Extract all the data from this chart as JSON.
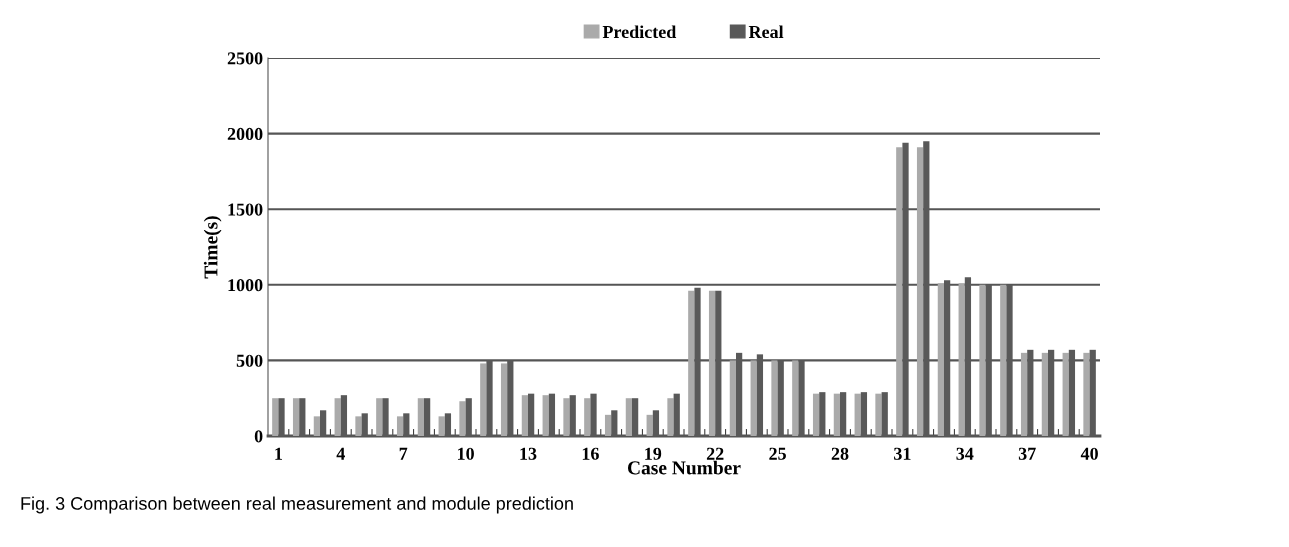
{
  "chart_data": {
    "type": "bar",
    "categories": [
      "1",
      null,
      null,
      "4",
      null,
      null,
      "7",
      null,
      null,
      "10",
      null,
      null,
      "13",
      null,
      null,
      "16",
      null,
      null,
      "19",
      null,
      null,
      "22",
      null,
      null,
      "25",
      null,
      null,
      "28",
      null,
      null,
      "31",
      null,
      null,
      "34",
      null,
      null,
      "37",
      null,
      null,
      "40"
    ],
    "series": [
      {
        "name": "Predicted",
        "color": "#aaaaaa",
        "values": [
          250,
          250,
          130,
          250,
          130,
          250,
          130,
          250,
          130,
          230,
          480,
          480,
          270,
          270,
          250,
          250,
          140,
          250,
          140,
          250,
          960,
          960,
          500,
          500,
          500,
          500,
          280,
          280,
          280,
          280,
          1910,
          1910,
          1010,
          1010,
          1000,
          1000,
          550,
          550,
          550,
          550
        ]
      },
      {
        "name": "Real",
        "color": "#595959",
        "values": [
          250,
          250,
          170,
          270,
          150,
          250,
          150,
          250,
          150,
          250,
          500,
          500,
          280,
          280,
          270,
          280,
          170,
          250,
          170,
          280,
          980,
          960,
          550,
          540,
          500,
          500,
          290,
          290,
          290,
          290,
          1940,
          1950,
          1030,
          1050,
          1000,
          1000,
          570,
          570,
          570,
          570
        ]
      }
    ],
    "xlabel": "Case Number",
    "ylabel": "Time(s)",
    "ylim": [
      0,
      2500
    ],
    "yticks": [
      0,
      500,
      1000,
      1500,
      2000,
      2500
    ],
    "grid": "y",
    "legend": "top",
    "annotations": [
      "Fig. 3 Comparison between real measurement and module prediction"
    ]
  }
}
